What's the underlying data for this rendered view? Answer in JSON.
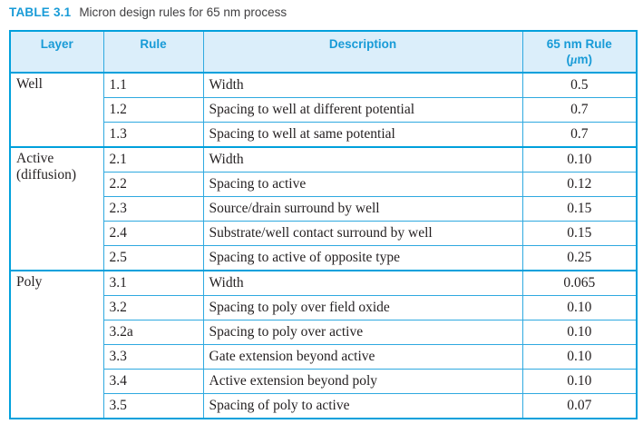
{
  "title": {
    "label": "TABLE 3.1",
    "caption": "Micron design rules for 65 nm process"
  },
  "colors": {
    "accent": "#00a0dc",
    "accent_text": "#189bd7",
    "header_bg": "#dbeefa",
    "body_text": "#231f20"
  },
  "table": {
    "columns": [
      {
        "label": "Layer"
      },
      {
        "label": "Rule"
      },
      {
        "label": "Description"
      },
      {
        "label": "65 nm Rule",
        "unit_prefix": "(",
        "unit_mu": "μ",
        "unit_suffix": "m)"
      }
    ],
    "groups": [
      {
        "layer": "Well",
        "rows": [
          {
            "rule": "1.1",
            "description": "Width",
            "value": "0.5"
          },
          {
            "rule": "1.2",
            "description": "Spacing to well at different potential",
            "value": "0.7"
          },
          {
            "rule": "1.3",
            "description": "Spacing to well at same potential",
            "value": "0.7"
          }
        ]
      },
      {
        "layer": "Active (diffusion)",
        "rows": [
          {
            "rule": "2.1",
            "description": "Width",
            "value": "0.10"
          },
          {
            "rule": "2.2",
            "description": "Spacing to active",
            "value": "0.12"
          },
          {
            "rule": "2.3",
            "description": "Source/drain surround by well",
            "value": "0.15"
          },
          {
            "rule": "2.4",
            "description": "Substrate/well contact surround by well",
            "value": "0.15"
          },
          {
            "rule": "2.5",
            "description": "Spacing to active of opposite type",
            "value": "0.25"
          }
        ]
      },
      {
        "layer": "Poly",
        "rows": [
          {
            "rule": "3.1",
            "description": "Width",
            "value": "0.065"
          },
          {
            "rule": "3.2",
            "description": "Spacing to poly over field oxide",
            "value": "0.10"
          },
          {
            "rule": "3.2a",
            "description": "Spacing to poly over active",
            "value": "0.10"
          },
          {
            "rule": "3.3",
            "description": "Gate extension beyond active",
            "value": "0.10"
          },
          {
            "rule": "3.4",
            "description": "Active extension beyond poly",
            "value": "0.10"
          },
          {
            "rule": "3.5",
            "description": "Spacing of poly to active",
            "value": "0.07"
          }
        ]
      }
    ]
  }
}
